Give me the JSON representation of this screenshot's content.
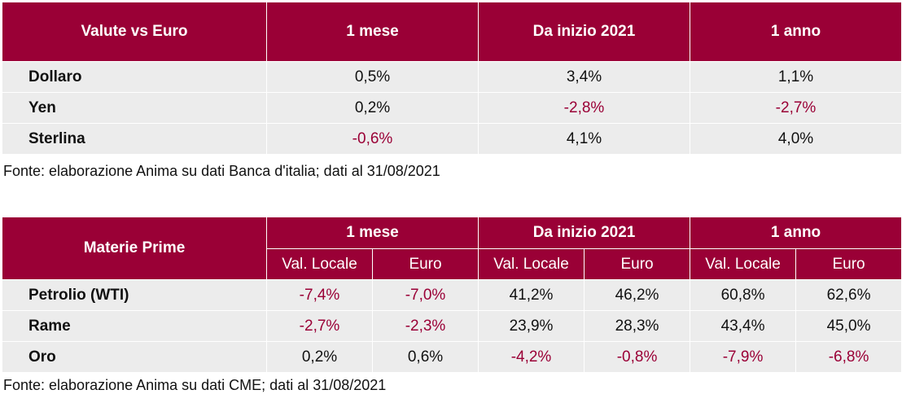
{
  "currencies": {
    "headers": [
      "Valute vs Euro",
      "1 mese",
      "Da inizio 2021",
      "1 anno"
    ],
    "rows": [
      {
        "name": "Dollaro",
        "values": [
          "0,5%",
          "3,4%",
          "1,1%"
        ]
      },
      {
        "name": "Yen",
        "values": [
          "0,2%",
          "-2,8%",
          "-2,7%"
        ]
      },
      {
        "name": "Sterlina",
        "values": [
          "-0,6%",
          "4,1%",
          "4,0%"
        ]
      }
    ],
    "source": "Fonte: elaborazione Anima su dati Banca d'italia; dati al 31/08/2021"
  },
  "commodities": {
    "title": "Materie Prime",
    "groups": [
      "1 mese",
      "Da inizio 2021",
      "1 anno"
    ],
    "subheaders": [
      "Val. Locale",
      "Euro",
      "Val. Locale",
      "Euro",
      "Val. Locale",
      "Euro"
    ],
    "rows": [
      {
        "name": "Petrolio (WTI)",
        "values": [
          "-7,4%",
          "-7,0%",
          "41,2%",
          "46,2%",
          "60,8%",
          "62,6%"
        ]
      },
      {
        "name": "Rame",
        "values": [
          "-2,7%",
          "-2,3%",
          "23,9%",
          "28,3%",
          "43,4%",
          "45,0%"
        ]
      },
      {
        "name": "Oro",
        "values": [
          "0,2%",
          "0,6%",
          "-4,2%",
          "-0,8%",
          "-7,9%",
          "-6,8%"
        ]
      }
    ],
    "source": "Fonte: elaborazione Anima su dati CME; dati al 31/08/2021"
  },
  "colors": {
    "header_bg": "#9a0036",
    "negative": "#9a0036",
    "row_bg": "#ececec"
  }
}
